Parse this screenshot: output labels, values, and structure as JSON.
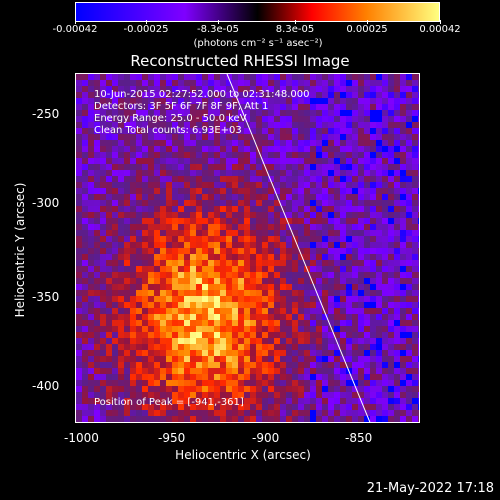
{
  "colorbar": {
    "labels": [
      "-0.00042",
      "-0.00025",
      "-8.3e-05",
      "8.3e-05",
      "0.00025",
      "0.00042"
    ],
    "units": "(photons cm⁻² s⁻¹ asec⁻²)",
    "colors": [
      "#0000ff",
      "#7f00ff",
      "#000000",
      "#ff0000",
      "#ff8000",
      "#ffff80"
    ]
  },
  "title": "Reconstructed RHESSI Image",
  "info": {
    "time_range": "10-Jun-2015 02:27:52.000 to 02:31:48.000",
    "detectors": "Detectors: 3F 5F 6F 7F 8F 9F, Att 1",
    "energy": "Energy Range: 25.0 - 50.0 keV",
    "clean": "Clean    Total counts: 6.93E+03",
    "peak": "Position of Peak = [-941,-361]"
  },
  "axes": {
    "xlabel": "Heliocentric X (arcsec)",
    "ylabel": "Heliocentric Y (arcsec)",
    "xticks": [
      "-1000",
      "-950",
      "-900",
      "-850"
    ],
    "yticks": [
      "-250",
      "-300",
      "-350",
      "-400"
    ],
    "xrange": [
      -1005,
      -820
    ],
    "yrange": [
      -233,
      -418
    ]
  },
  "limb_line": {
    "x": [
      -924,
      -847
    ],
    "y": [
      -233,
      -418
    ]
  },
  "timestamp": "21-May-2022 17:18"
}
